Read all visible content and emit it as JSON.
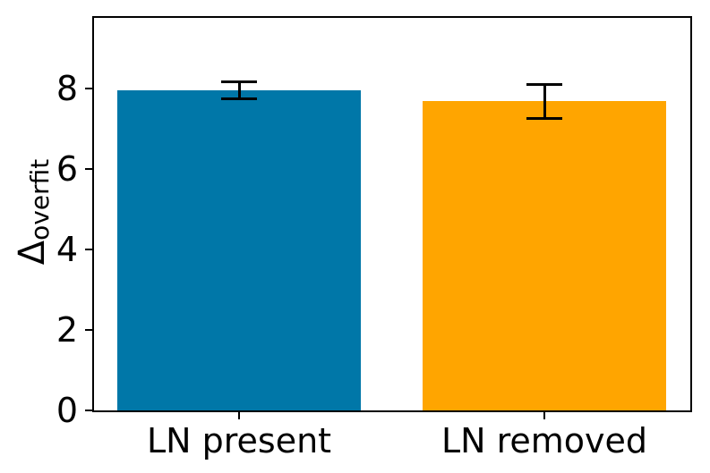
{
  "chart_data": {
    "type": "bar",
    "title": "",
    "categories": [
      "LN present",
      "LN removed"
    ],
    "values": [
      7.95,
      7.68
    ],
    "errors": [
      0.22,
      0.42
    ],
    "bar_colors": [
      "#0077A8",
      "#FFA500"
    ],
    "error_bar_color": "#000000",
    "axis_color": "#000000",
    "xlabel": "",
    "ylabel": "Δ_overfit",
    "ylabel_main": "Δ",
    "ylabel_sub": "overfit",
    "yticks": [
      0,
      2,
      4,
      6,
      8
    ],
    "ylim": [
      0,
      9.75
    ],
    "grid": false,
    "legend": null
  }
}
